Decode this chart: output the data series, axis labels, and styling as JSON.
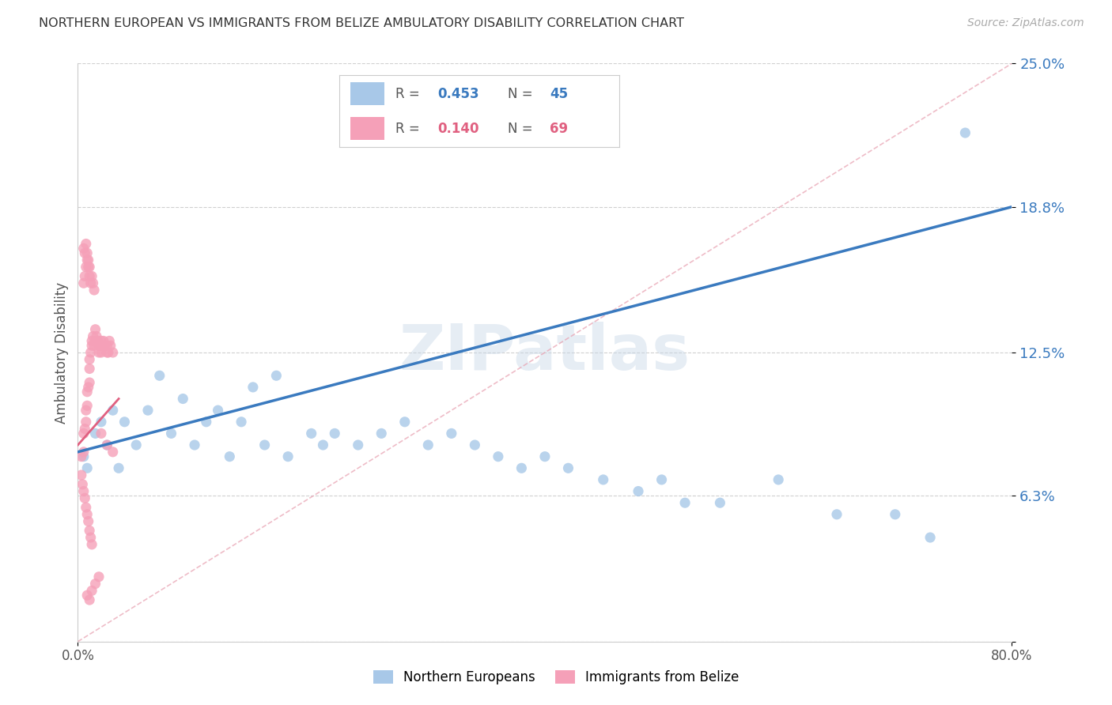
{
  "title": "NORTHERN EUROPEAN VS IMMIGRANTS FROM BELIZE AMBULATORY DISABILITY CORRELATION CHART",
  "source": "Source: ZipAtlas.com",
  "ylabel": "Ambulatory Disability",
  "xmin": 0.0,
  "xmax": 0.8,
  "ymin": 0.0,
  "ymax": 0.25,
  "ytick_vals": [
    0.0,
    0.063,
    0.125,
    0.188,
    0.25
  ],
  "ytick_labels": [
    "",
    "6.3%",
    "12.5%",
    "18.8%",
    "25.0%"
  ],
  "blue_color": "#a8c8e8",
  "blue_line_color": "#3a7abf",
  "pink_color": "#f5a0b8",
  "pink_line_color": "#e06080",
  "legend_R1": "0.453",
  "legend_N1": "45",
  "legend_R2": "0.140",
  "legend_N2": "69",
  "blue_scatter_x": [
    0.005,
    0.008,
    0.015,
    0.02,
    0.025,
    0.03,
    0.035,
    0.04,
    0.05,
    0.06,
    0.07,
    0.08,
    0.09,
    0.1,
    0.11,
    0.12,
    0.13,
    0.14,
    0.15,
    0.16,
    0.17,
    0.18,
    0.2,
    0.21,
    0.22,
    0.24,
    0.26,
    0.28,
    0.3,
    0.32,
    0.34,
    0.36,
    0.38,
    0.4,
    0.42,
    0.45,
    0.48,
    0.5,
    0.52,
    0.55,
    0.6,
    0.65,
    0.7,
    0.73,
    0.76
  ],
  "blue_scatter_y": [
    0.08,
    0.075,
    0.09,
    0.095,
    0.085,
    0.1,
    0.075,
    0.095,
    0.085,
    0.1,
    0.115,
    0.09,
    0.105,
    0.085,
    0.095,
    0.1,
    0.08,
    0.095,
    0.11,
    0.085,
    0.115,
    0.08,
    0.09,
    0.085,
    0.09,
    0.085,
    0.09,
    0.095,
    0.085,
    0.09,
    0.085,
    0.08,
    0.075,
    0.08,
    0.075,
    0.07,
    0.065,
    0.07,
    0.06,
    0.06,
    0.07,
    0.055,
    0.055,
    0.045,
    0.22
  ],
  "pink_scatter_x": [
    0.003,
    0.005,
    0.005,
    0.006,
    0.007,
    0.007,
    0.008,
    0.008,
    0.009,
    0.01,
    0.01,
    0.01,
    0.011,
    0.012,
    0.012,
    0.013,
    0.014,
    0.015,
    0.015,
    0.016,
    0.017,
    0.018,
    0.018,
    0.019,
    0.02,
    0.02,
    0.021,
    0.022,
    0.023,
    0.025,
    0.025,
    0.026,
    0.027,
    0.028,
    0.03,
    0.003,
    0.004,
    0.005,
    0.006,
    0.007,
    0.008,
    0.009,
    0.01,
    0.011,
    0.012,
    0.005,
    0.006,
    0.007,
    0.008,
    0.009,
    0.01,
    0.011,
    0.012,
    0.013,
    0.014,
    0.005,
    0.006,
    0.007,
    0.008,
    0.009,
    0.01,
    0.02,
    0.025,
    0.03,
    0.008,
    0.01,
    0.012,
    0.015,
    0.018
  ],
  "pink_scatter_y": [
    0.08,
    0.082,
    0.09,
    0.092,
    0.095,
    0.1,
    0.102,
    0.108,
    0.11,
    0.112,
    0.118,
    0.122,
    0.125,
    0.128,
    0.13,
    0.132,
    0.128,
    0.13,
    0.135,
    0.132,
    0.13,
    0.128,
    0.125,
    0.128,
    0.13,
    0.125,
    0.128,
    0.13,
    0.128,
    0.125,
    0.128,
    0.125,
    0.13,
    0.128,
    0.125,
    0.072,
    0.068,
    0.065,
    0.062,
    0.058,
    0.055,
    0.052,
    0.048,
    0.045,
    0.042,
    0.155,
    0.158,
    0.162,
    0.165,
    0.162,
    0.158,
    0.155,
    0.158,
    0.155,
    0.152,
    0.17,
    0.168,
    0.172,
    0.168,
    0.165,
    0.162,
    0.09,
    0.085,
    0.082,
    0.02,
    0.018,
    0.022,
    0.025,
    0.028
  ]
}
